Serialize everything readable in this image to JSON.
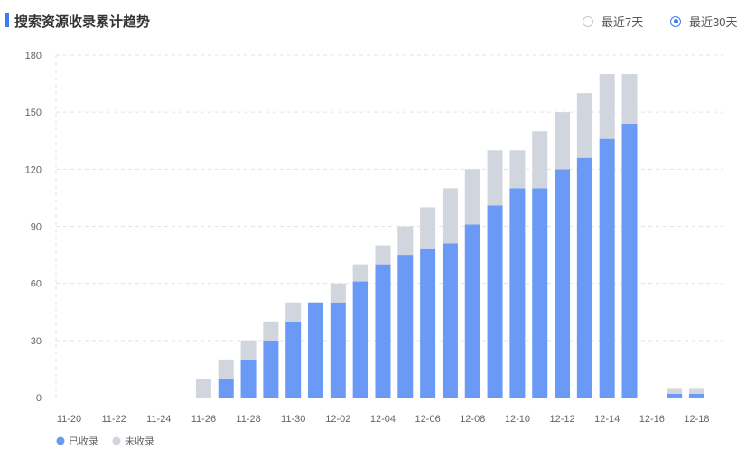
{
  "header": {
    "title": "搜索资源收录累计趋势",
    "ranges": [
      {
        "label": "最近7天",
        "selected": false
      },
      {
        "label": "最近30天",
        "selected": true
      }
    ]
  },
  "colors": {
    "accent": "#3d7bf5",
    "indexed": "#6a9af6",
    "unindexed": "#d1d5dd",
    "grid": "#e3e3e3"
  },
  "chart_data": {
    "type": "bar",
    "stacked": true,
    "categories": [
      "11-20",
      "11-21",
      "11-22",
      "11-23",
      "11-24",
      "11-25",
      "11-26",
      "11-27",
      "11-28",
      "11-29",
      "11-30",
      "12-01",
      "12-02",
      "12-03",
      "12-04",
      "12-05",
      "12-06",
      "12-07",
      "12-08",
      "12-09",
      "12-10",
      "12-11",
      "12-12",
      "12-13",
      "12-14",
      "12-15",
      "12-16",
      "12-17",
      "12-18"
    ],
    "x_tick_labels": [
      "11-20",
      "11-22",
      "11-24",
      "11-26",
      "11-28",
      "11-30",
      "12-02",
      "12-04",
      "12-06",
      "12-08",
      "12-10",
      "12-12",
      "12-14",
      "12-16",
      "12-18"
    ],
    "series": [
      {
        "name": "已收录",
        "color": "#6a9af6",
        "values": [
          0,
          0,
          0,
          0,
          0,
          0,
          0,
          10,
          20,
          30,
          40,
          50,
          50,
          61,
          70,
          75,
          78,
          81,
          91,
          101,
          110,
          110,
          120,
          126,
          136,
          144,
          0,
          2,
          2
        ]
      },
      {
        "name": "未收录",
        "color": "#d1d5dd",
        "values": [
          0,
          0,
          0,
          0,
          0,
          0,
          10,
          10,
          10,
          10,
          10,
          0,
          10,
          9,
          10,
          15,
          22,
          29,
          29,
          29,
          20,
          30,
          30,
          34,
          34,
          26,
          0,
          3,
          3
        ]
      }
    ],
    "ylim": [
      0,
      180
    ],
    "yticks": [
      0,
      30,
      60,
      90,
      120,
      150,
      180
    ],
    "grid": true,
    "legend_position": "bottom-left"
  }
}
